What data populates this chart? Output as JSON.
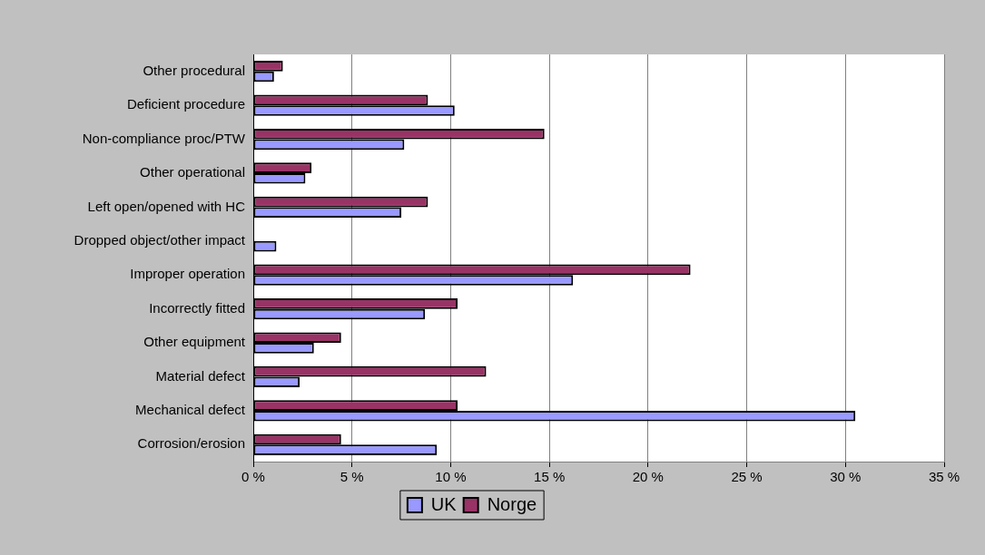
{
  "chart_data": {
    "type": "bar",
    "orientation": "horizontal",
    "categories": [
      "Other procedural",
      "Deficient procedure",
      "Non-compliance proc/PTW",
      "Other operational",
      "Left open/opened with HC",
      "Dropped object/other impact",
      "Improper operation",
      "Incorrectly fitted",
      "Other equipment",
      "Material defect",
      "Mechanical defect",
      "Corrosion/erosion"
    ],
    "series": [
      {
        "name": "UK",
        "color": "#9999ff",
        "values": [
          1.05,
          10.2,
          7.65,
          2.64,
          7.5,
          1.17,
          16.2,
          8.7,
          3.07,
          2.35,
          30.5,
          9.3
        ]
      },
      {
        "name": "Norge",
        "color": "#993366",
        "values": [
          1.5,
          8.85,
          14.75,
          2.95,
          8.85,
          null,
          22.15,
          10.35,
          4.45,
          11.8,
          10.35,
          4.45
        ]
      }
    ],
    "xlim": [
      0,
      35
    ],
    "xticks": [
      {
        "value": 0,
        "label": "0 %"
      },
      {
        "value": 5,
        "label": "5 %"
      },
      {
        "value": 10,
        "label": "10 %"
      },
      {
        "value": 15,
        "label": "15 %"
      },
      {
        "value": 20,
        "label": "20 %"
      },
      {
        "value": 25,
        "label": "25 %"
      },
      {
        "value": 30,
        "label": "30 %"
      },
      {
        "value": 35,
        "label": "35 %"
      }
    ],
    "grid": "x",
    "legend": "bottom"
  }
}
